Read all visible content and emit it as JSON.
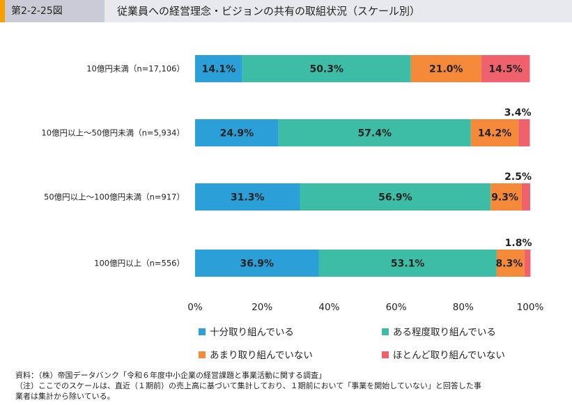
{
  "header": {
    "figure_number": "第2-2-25図",
    "title": "従業員への経営理念・ビジョンの共有の取組状況（スケール別）"
  },
  "chart_data": {
    "type": "bar",
    "orientation": "horizontal",
    "stacked": true,
    "categories": [
      "10億円未満（n=17,106）",
      "10億円以上～50億円未満（n=5,934）",
      "50億円以上～100億円未満（n=917）",
      "100億円以上（n=556）"
    ],
    "series": [
      {
        "name": "十分取り組んでいる",
        "color": "#2a9fd8",
        "values": [
          14.1,
          24.9,
          31.3,
          36.9
        ]
      },
      {
        "name": "ある程度取り組んでいる",
        "color": "#3dbda6",
        "values": [
          50.3,
          57.4,
          56.9,
          53.1
        ]
      },
      {
        "name": "あまり取り組んでいない",
        "color": "#f5893a",
        "values": [
          21.0,
          14.2,
          9.3,
          8.3
        ]
      },
      {
        "name": "ほとんど取り組んでいない",
        "color": "#f0616e",
        "values": [
          14.5,
          3.4,
          2.5,
          1.8
        ]
      }
    ],
    "data_labels": [
      [
        "14.1%",
        "50.3%",
        "21.0%",
        "14.5%"
      ],
      [
        "24.9%",
        "57.4%",
        "14.2%",
        "3.4%"
      ],
      [
        "31.3%",
        "56.9%",
        "9.3%",
        "2.5%"
      ],
      [
        "36.9%",
        "53.1%",
        "8.3%",
        "1.8%"
      ]
    ],
    "xlim": [
      0,
      100
    ],
    "xticks": [
      "0%",
      "20%",
      "40%",
      "60%",
      "80%",
      "100%"
    ],
    "legend_position": "bottom",
    "grid": false
  },
  "footnotes": {
    "source": "資料：（株）帝国データバンク「令和６年度中小企業の経営課題と事業活動に関する調査」",
    "note_line1": "（注）ここでのスケールは、直近（１期前）の売上高に基づいて集計しており、１期前において「事業を開始していない」と回答した事",
    "note_line2": "業者は集計から除いている。"
  }
}
